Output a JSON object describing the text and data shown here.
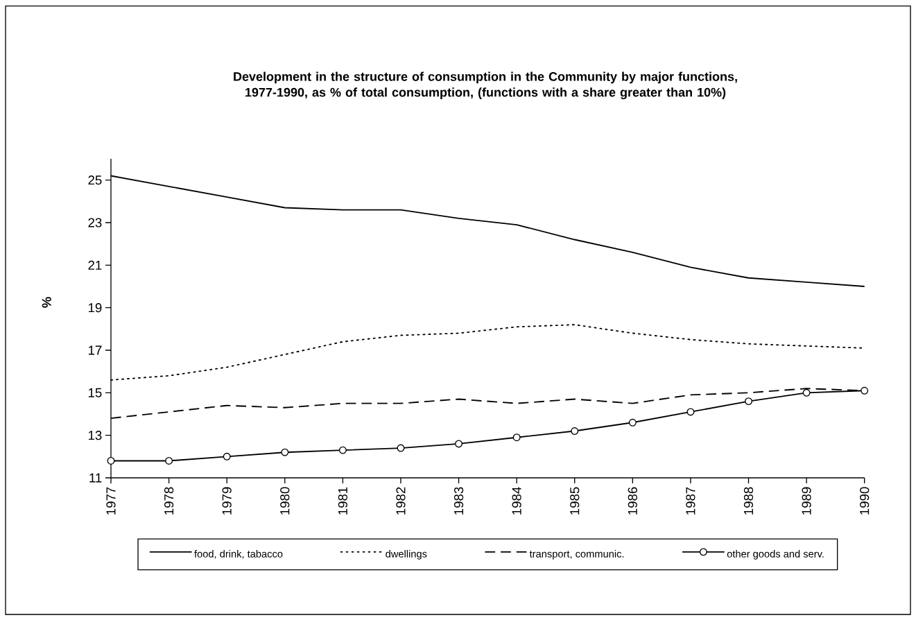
{
  "chart_data": {
    "type": "line",
    "title": "Development in the structure of consumption in the Community by major functions, 1977-1990, as % of total consumption, (functions with a share greater than 10%)",
    "ylabel": "%",
    "categories": [
      "1977",
      "1978",
      "1979",
      "1980",
      "1981",
      "1982",
      "1983",
      "1984",
      "1985",
      "1986",
      "1987",
      "1988",
      "1989",
      "1990"
    ],
    "series": [
      {
        "name": "food, drink, tabacco",
        "color": "#000000",
        "line_style": "solid",
        "marker": "none",
        "values": [
          25.2,
          24.7,
          24.2,
          23.7,
          23.6,
          23.6,
          23.2,
          22.9,
          22.2,
          21.6,
          20.9,
          20.4,
          20.2,
          20.0
        ]
      },
      {
        "name": "dwellings",
        "color": "#000000",
        "line_style": "dotted",
        "marker": "none",
        "values": [
          15.6,
          15.8,
          16.2,
          16.8,
          17.4,
          17.7,
          17.8,
          18.1,
          18.2,
          17.8,
          17.5,
          17.3,
          17.2,
          17.1
        ]
      },
      {
        "name": "transport, communic.",
        "color": "#000000",
        "line_style": "dashed",
        "marker": "none",
        "values": [
          13.8,
          14.1,
          14.4,
          14.3,
          14.5,
          14.5,
          14.7,
          14.5,
          14.7,
          14.5,
          14.9,
          15.0,
          15.2,
          15.1
        ]
      },
      {
        "name": "other goods and serv.",
        "color": "#000000",
        "line_style": "solid",
        "marker": "circle",
        "values": [
          11.8,
          11.8,
          12.0,
          12.2,
          12.3,
          12.4,
          12.6,
          12.9,
          13.2,
          13.6,
          14.1,
          14.6,
          15.0,
          15.1
        ]
      }
    ],
    "ylim": [
      11,
      26
    ],
    "yticks": [
      11,
      13,
      15,
      17,
      19,
      21,
      23,
      25
    ],
    "grid": false,
    "legend": "bottom"
  }
}
